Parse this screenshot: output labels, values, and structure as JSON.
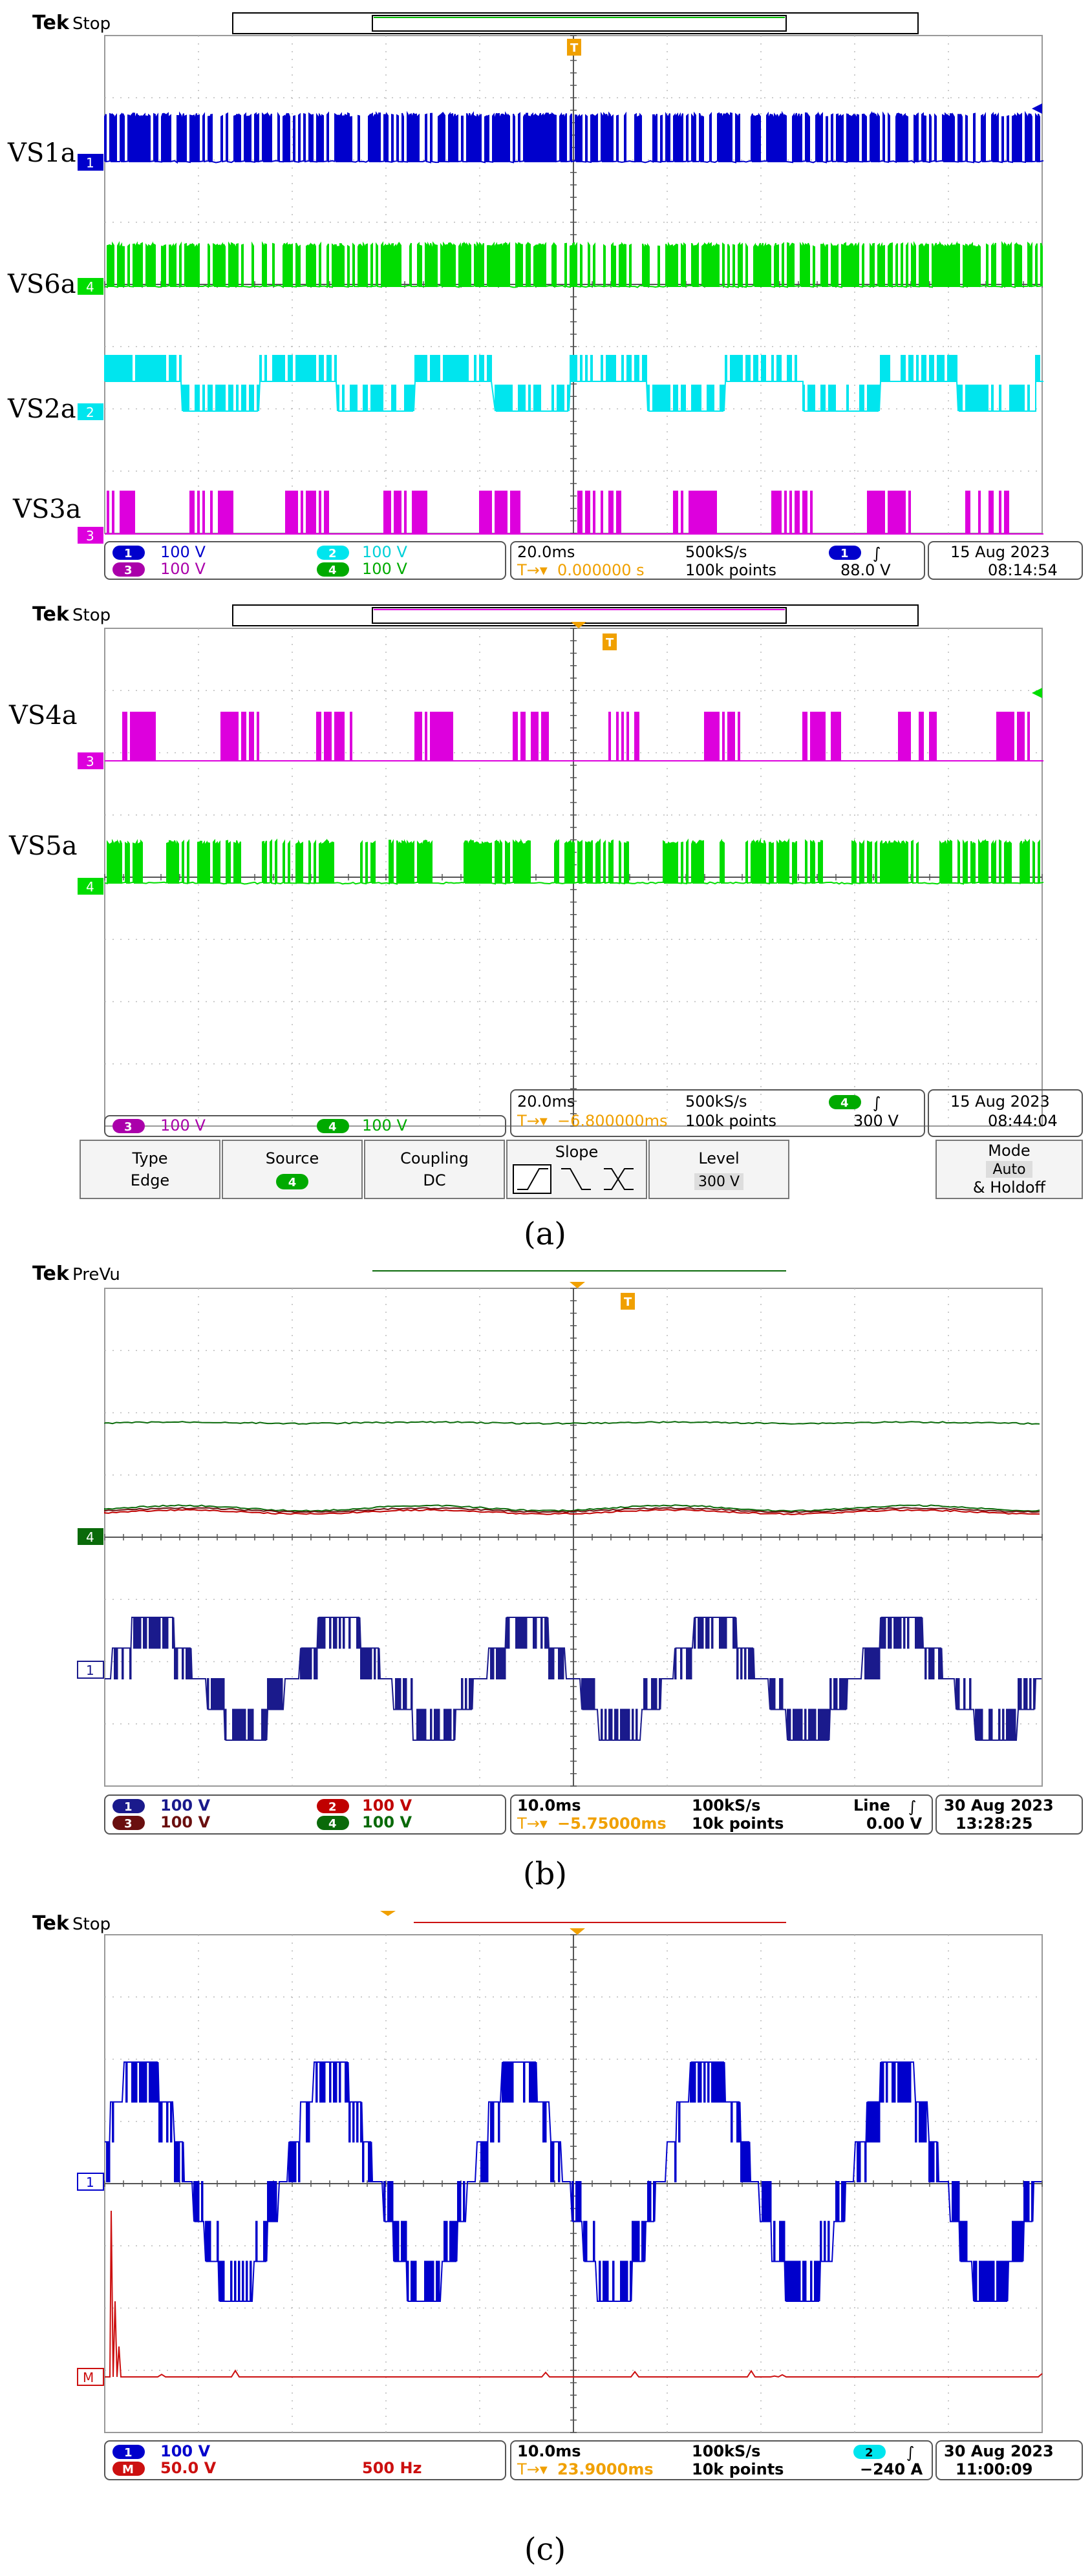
{
  "brand": "Tek",
  "panels": [
    {
      "id": "a1",
      "status": "Stop",
      "trace_labels": [
        "VS1a",
        "VS6a",
        "VS2a",
        "VS3a"
      ],
      "marker_labels": [
        "1",
        "4",
        "2",
        "3"
      ],
      "readout": {
        "ch1": "100 V",
        "ch2": "100 V",
        "ch3": "100 V",
        "ch4": "100 V",
        "timebase": "20.0ms",
        "sample_rate": "500kS/s",
        "delay": "0.000000 s",
        "record": "100k points",
        "trig_ch": "1",
        "trig_level": "88.0 V",
        "date": "15 Aug 2023",
        "time": "08:14:54"
      }
    },
    {
      "id": "a2",
      "status": "Stop",
      "trace_labels": [
        "VS4a",
        "VS5a"
      ],
      "marker_labels": [
        "3",
        "4",
        "3"
      ],
      "readout": {
        "ch3": "100 V",
        "ch4": "100 V",
        "timebase": "20.0ms",
        "sample_rate": "500kS/s",
        "delay": "−6.800000ms",
        "record": "100k points",
        "trig_ch": "4",
        "trig_level": "300 V",
        "date": "15 Aug 2023",
        "time": "08:44:04"
      },
      "menu": {
        "type_label": "Type",
        "type_value": "Edge",
        "source_label": "Source",
        "source_value": "4",
        "coupling_label": "Coupling",
        "coupling_value": "DC",
        "slope_label": "Slope",
        "level_label": "Level",
        "level_value": "300 V",
        "mode_label": "Mode",
        "mode_value": "Auto",
        "mode_sub": "& Holdoff"
      }
    },
    {
      "id": "b",
      "status": "PreVu",
      "marker_labels": [
        "4",
        "1"
      ],
      "readout": {
        "ch1": "100 V",
        "ch2": "100 V",
        "ch3": "100 V",
        "ch4": "100 V",
        "timebase": "10.0ms",
        "sample_rate": "100kS/s",
        "delay": "−5.75000ms",
        "record": "10k points",
        "trig_src": "Line",
        "trig_level": "0.00 V",
        "date": "30 Aug 2023",
        "time": "13:28:25"
      }
    },
    {
      "id": "c",
      "status": "Stop",
      "marker_labels": [
        "1",
        "M"
      ],
      "readout": {
        "ch1": "100 V",
        "math_label": "M",
        "math_scale": "50.0 V",
        "math_freq": "500 Hz",
        "timebase": "10.0ms",
        "sample_rate": "100kS/s",
        "delay": "23.9000ms",
        "record": "10k points",
        "trig_ch": "2",
        "trig_level": "−240 A",
        "date": "30 Aug 2023",
        "time": "11:00:09"
      }
    }
  ],
  "captions": [
    "(a)",
    "(b)",
    "(c)"
  ],
  "colors": {
    "ch1": "#0000cc",
    "ch2": "#00e5ee",
    "ch3": "#dd00dd",
    "ch4": "#00dd00",
    "ch1_dark": "#1a1a8c",
    "ch2_dark": "#c00000",
    "ch3_dark": "#6a0f0f",
    "ch4_dark": "#0a6a0a",
    "math": "#cc1010",
    "orange": "#f0a000"
  },
  "chart_data": [
    {
      "type": "line",
      "title": "",
      "panel": "a1",
      "series": [
        {
          "name": "VS1a",
          "kind": "pwm",
          "color": "#0000cc"
        },
        {
          "name": "VS6a",
          "kind": "pwm",
          "color": "#00dd00"
        },
        {
          "name": "VS2a",
          "kind": "square-pwm",
          "color": "#00e5ee"
        },
        {
          "name": "VS3a",
          "kind": "burst",
          "color": "#dd00dd"
        }
      ],
      "grid": true
    },
    {
      "type": "line",
      "title": "",
      "panel": "a2",
      "series": [
        {
          "name": "VS4a",
          "kind": "burst",
          "color": "#dd00dd"
        },
        {
          "name": "VS5a",
          "kind": "pwm",
          "color": "#00dd00"
        }
      ],
      "grid": true
    },
    {
      "type": "line",
      "title": "",
      "panel": "b",
      "series": [
        {
          "kind": "dc",
          "color": "#0a6a0a"
        },
        {
          "kind": "dc",
          "color": "#c00000"
        },
        {
          "kind": "dc",
          "color": "#6a0f0f"
        },
        {
          "kind": "multilevel",
          "color": "#1a1a8c"
        }
      ],
      "grid": true
    },
    {
      "type": "line",
      "title": "",
      "panel": "c",
      "series": [
        {
          "kind": "multilevel",
          "color": "#0000cc"
        },
        {
          "kind": "spectrum",
          "color": "#cc1010"
        }
      ],
      "grid": true
    }
  ]
}
